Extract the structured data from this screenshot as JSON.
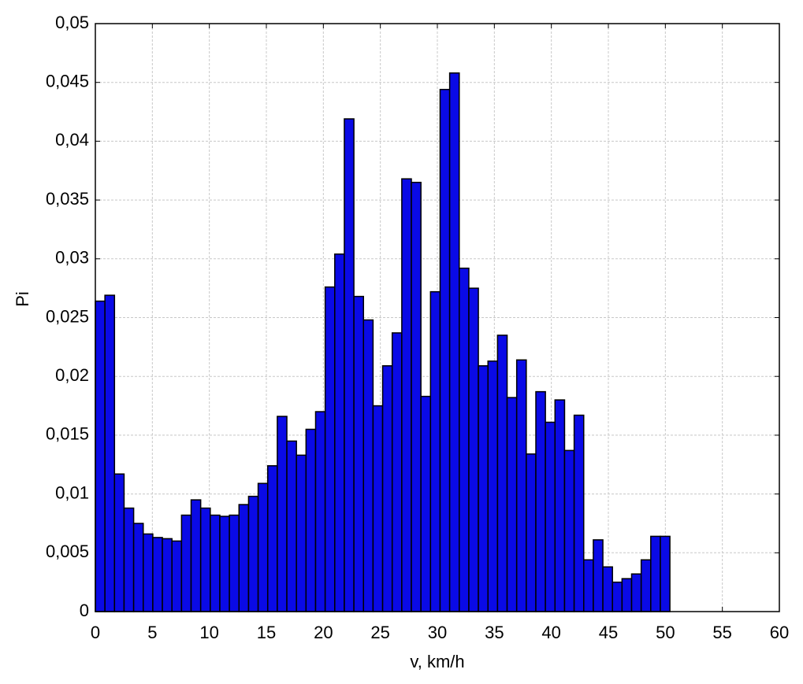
{
  "chart_data": {
    "type": "histogram",
    "xlabel": "v, km/h",
    "ylabel": "Pi",
    "bins": [
      0,
      0.84,
      1.68,
      2.52,
      3.36,
      4.2,
      5.04,
      5.88,
      6.72,
      7.56,
      8.4,
      9.24,
      10.08,
      10.92,
      11.76,
      12.6,
      13.44,
      14.28,
      15.12,
      15.96,
      16.8,
      17.64,
      18.48,
      19.32,
      20.16,
      21,
      21.84,
      22.68,
      23.52,
      24.36,
      25.2,
      26.04,
      26.88,
      27.72,
      28.56,
      29.4,
      30.24,
      31.08,
      31.92,
      32.76,
      33.6,
      34.44,
      35.28,
      36.12,
      36.96,
      37.8,
      38.64,
      39.48,
      40.32,
      41.16,
      42,
      42.84,
      43.68,
      44.52,
      45.36,
      46.2,
      47.04,
      47.88,
      48.72,
      49.56,
      50.4
    ],
    "values": [
      0.0264,
      0.0269,
      0.0117,
      0.0088,
      0.0075,
      0.0066,
      0.0063,
      0.0062,
      0.006,
      0.0082,
      0.0095,
      0.0088,
      0.0082,
      0.0081,
      0.0082,
      0.0091,
      0.0098,
      0.0109,
      0.0124,
      0.0166,
      0.0145,
      0.0133,
      0.0155,
      0.017,
      0.0276,
      0.0304,
      0.0419,
      0.0268,
      0.0248,
      0.0175,
      0.0209,
      0.0237,
      0.0368,
      0.0365,
      0.0183,
      0.0272,
      0.0444,
      0.0458,
      0.0292,
      0.0275,
      0.0209,
      0.0213,
      0.0235,
      0.0182,
      0.0214,
      0.0134,
      0.0187,
      0.0161,
      0.018,
      0.0137,
      0.0167,
      0.0044,
      0.0061,
      0.0038,
      0.0025,
      0.0028,
      0.0032,
      0.0044,
      0.0064,
      0.0064
    ],
    "color": "#0a0ae6",
    "xlim": [
      0,
      60
    ],
    "xticks": [
      0,
      5,
      10,
      15,
      20,
      25,
      30,
      35,
      40,
      45,
      50,
      55,
      60
    ],
    "ylim": [
      0,
      0.05
    ],
    "yticks": [
      0,
      {
        "value": 0.005,
        "label": "0,005"
      },
      {
        "value": 0.01,
        "label": "0,01"
      },
      {
        "value": 0.015,
        "label": "0,015"
      },
      {
        "value": 0.02,
        "label": "0,02"
      },
      {
        "value": 0.025,
        "label": "0,025"
      },
      {
        "value": 0.03,
        "label": "0,03"
      },
      {
        "value": 0.035,
        "label": "0,035"
      },
      {
        "value": 0.04,
        "label": "0,04"
      },
      {
        "value": 0.045,
        "label": "0,045"
      },
      {
        "value": 0.05,
        "label": "0,05"
      }
    ],
    "grid": true
  }
}
